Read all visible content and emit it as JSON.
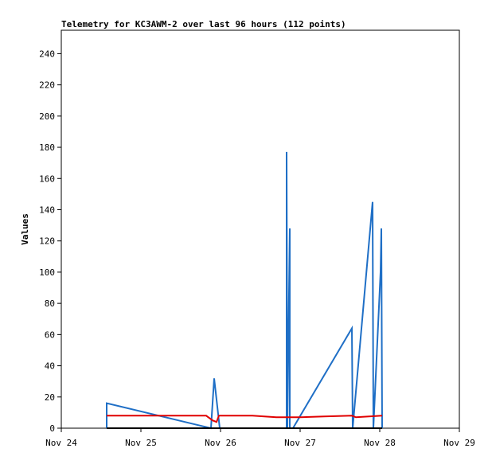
{
  "chart_data": {
    "type": "line",
    "title": "Telemetry for KC3AWM-2 over last 96 hours (112 points)",
    "y_label": "Values",
    "xlim": [
      24,
      29
    ],
    "xticks": [
      {
        "value": 24,
        "label": "Nov 24"
      },
      {
        "value": 25,
        "label": "Nov 25"
      },
      {
        "value": 26,
        "label": "Nov 26"
      },
      {
        "value": 27,
        "label": "Nov 27"
      },
      {
        "value": 28,
        "label": "Nov 28"
      },
      {
        "value": 29,
        "label": "Nov 29"
      }
    ],
    "ylim": [
      0,
      255
    ],
    "yticks": [
      0,
      20,
      40,
      60,
      80,
      100,
      120,
      140,
      160,
      180,
      200,
      220,
      240
    ],
    "series": [
      {
        "color": "#1f6fc6",
        "x": [
          24.57,
          24.57,
          25.88,
          25.92,
          25.99,
          26.83,
          26.83,
          26.84,
          26.87,
          26.87,
          26.91,
          27.65,
          27.66,
          27.91,
          27.92,
          28.01,
          28.02,
          28.03
        ],
        "values": [
          0,
          16,
          0,
          32,
          0,
          0,
          177,
          0,
          128,
          0,
          0,
          64,
          0,
          145,
          0,
          100,
          128,
          0
        ]
      },
      {
        "color": "#e00000",
        "x": [
          24.57,
          25.82,
          25.9,
          25.95,
          25.98,
          26.4,
          26.7,
          27.0,
          27.3,
          27.65,
          27.7,
          28.03
        ],
        "values": [
          8,
          8,
          5,
          4,
          8,
          8,
          7,
          7,
          7.5,
          8,
          7,
          8
        ]
      },
      {
        "color": "#000000",
        "x": [
          24.57,
          28.03
        ],
        "values": [
          0,
          0
        ]
      }
    ]
  }
}
